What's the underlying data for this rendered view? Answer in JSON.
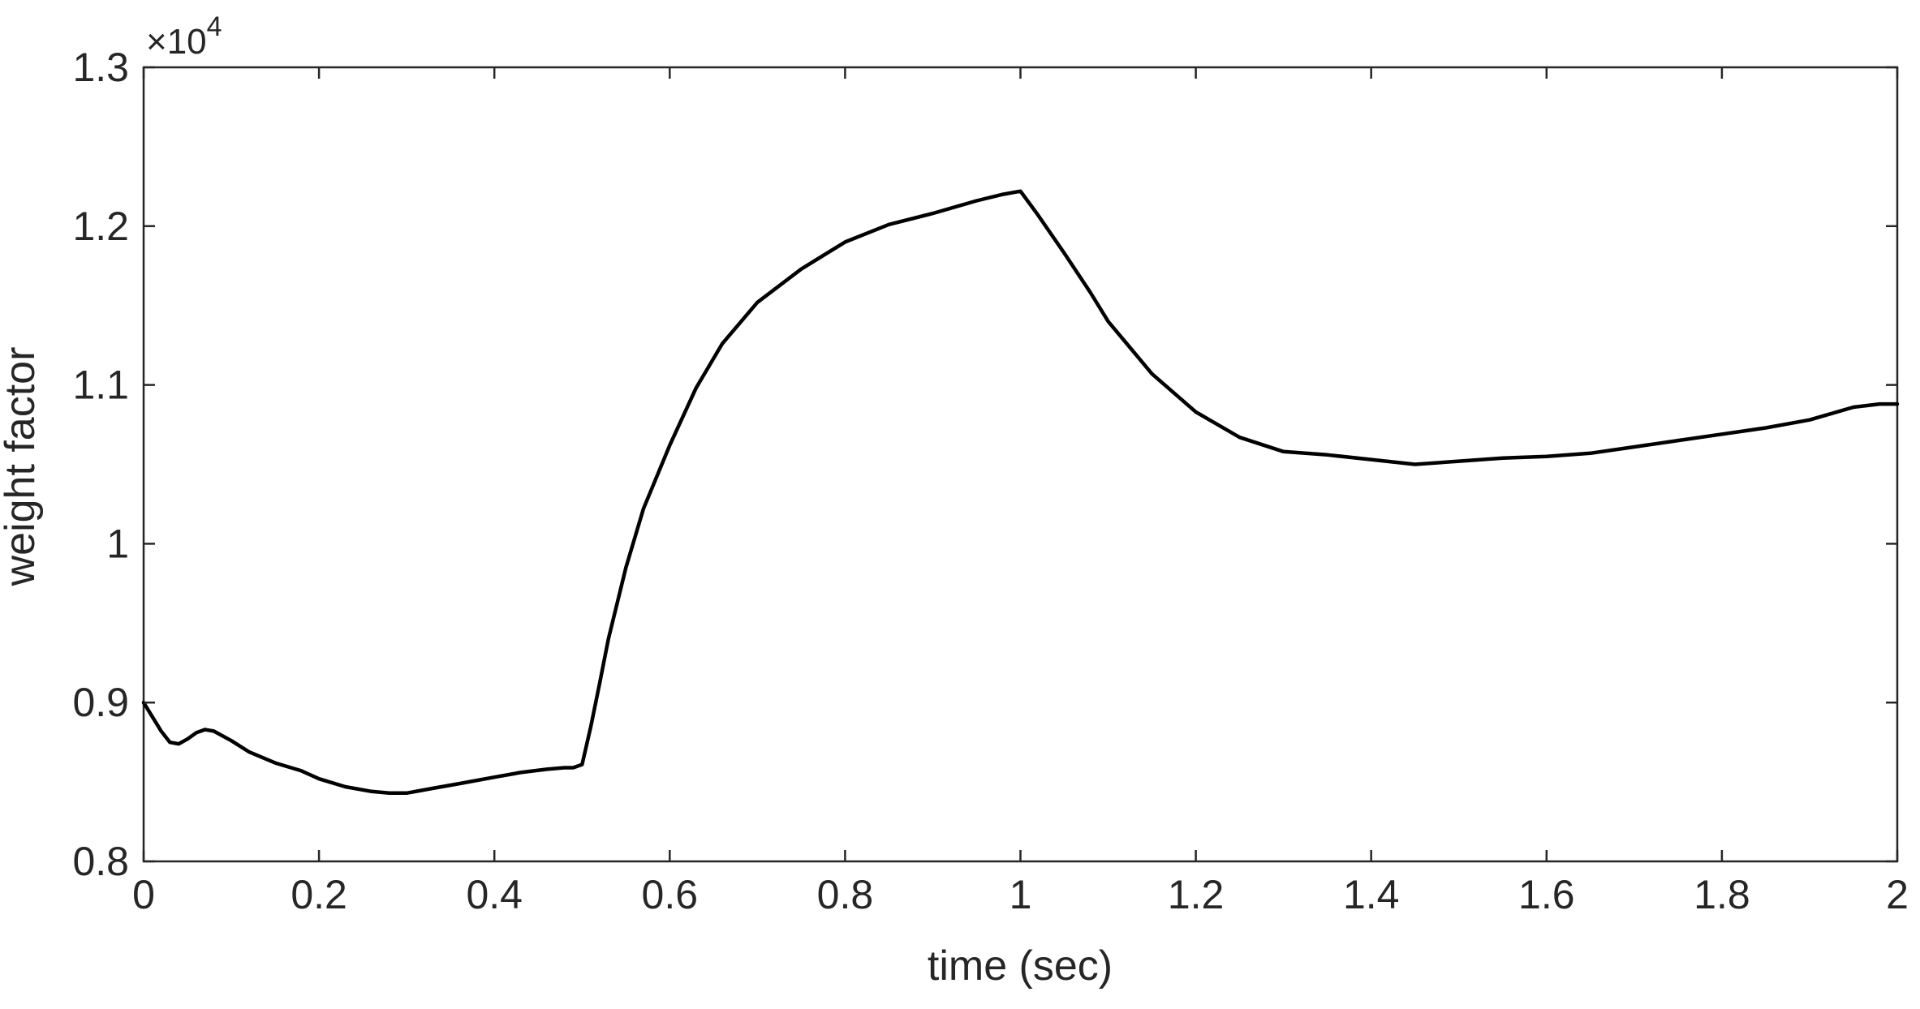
{
  "chart_data": {
    "type": "line",
    "xlabel": "time (sec)",
    "ylabel": "weight factor",
    "y_multiplier": {
      "base": "×10",
      "exponent": "4"
    },
    "xlim": [
      0,
      2
    ],
    "ylim": [
      0.8,
      1.3
    ],
    "x_ticks": [
      {
        "value": 0,
        "label": "0"
      },
      {
        "value": 0.2,
        "label": "0.2"
      },
      {
        "value": 0.4,
        "label": "0.4"
      },
      {
        "value": 0.6,
        "label": "0.6"
      },
      {
        "value": 0.8,
        "label": "0.8"
      },
      {
        "value": 1.0,
        "label": "1"
      },
      {
        "value": 1.2,
        "label": "1.2"
      },
      {
        "value": 1.4,
        "label": "1.4"
      },
      {
        "value": 1.6,
        "label": "1.6"
      },
      {
        "value": 1.8,
        "label": "1.8"
      },
      {
        "value": 2.0,
        "label": "2"
      }
    ],
    "y_ticks": [
      {
        "value": 0.8,
        "label": "0.8"
      },
      {
        "value": 0.9,
        "label": "0.9"
      },
      {
        "value": 1.0,
        "label": "1"
      },
      {
        "value": 1.1,
        "label": "1.1"
      },
      {
        "value": 1.2,
        "label": "1.2"
      },
      {
        "value": 1.3,
        "label": "1.3"
      }
    ],
    "grid": false,
    "box": true,
    "line_color": "#000000",
    "series": [
      {
        "x": [
          0,
          0.01,
          0.02,
          0.03,
          0.04,
          0.05,
          0.06,
          0.07,
          0.08,
          0.1,
          0.12,
          0.15,
          0.18,
          0.2,
          0.23,
          0.26,
          0.28,
          0.3,
          0.33,
          0.36,
          0.4,
          0.43,
          0.46,
          0.48,
          0.49,
          0.5,
          0.51,
          0.52,
          0.53,
          0.55,
          0.57,
          0.6,
          0.63,
          0.66,
          0.7,
          0.75,
          0.8,
          0.85,
          0.9,
          0.95,
          0.98,
          1.0,
          1.02,
          1.05,
          1.08,
          1.1,
          1.15,
          1.2,
          1.25,
          1.3,
          1.35,
          1.4,
          1.45,
          1.5,
          1.55,
          1.6,
          1.65,
          1.7,
          1.75,
          1.8,
          1.85,
          1.9,
          1.95,
          1.98,
          2.0
        ],
        "y": [
          0.9,
          0.891,
          0.882,
          0.875,
          0.874,
          0.877,
          0.881,
          0.883,
          0.882,
          0.876,
          0.869,
          0.862,
          0.857,
          0.852,
          0.847,
          0.844,
          0.843,
          0.843,
          0.846,
          0.849,
          0.853,
          0.856,
          0.858,
          0.859,
          0.859,
          0.861,
          0.885,
          0.912,
          0.94,
          0.985,
          1.022,
          1.062,
          1.098,
          1.126,
          1.152,
          1.173,
          1.19,
          1.201,
          1.208,
          1.216,
          1.22,
          1.222,
          1.207,
          1.183,
          1.158,
          1.14,
          1.107,
          1.083,
          1.067,
          1.058,
          1.056,
          1.053,
          1.05,
          1.052,
          1.054,
          1.055,
          1.057,
          1.061,
          1.065,
          1.069,
          1.073,
          1.078,
          1.086,
          1.088,
          1.088
        ]
      }
    ]
  }
}
